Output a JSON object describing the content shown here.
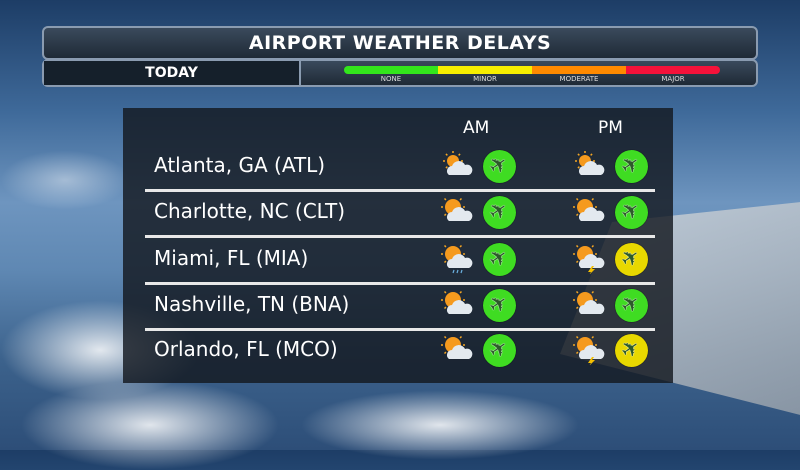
{
  "title": "AIRPORT WEATHER DELAYS",
  "period": "TODAY",
  "legend": [
    {
      "label": "NONE",
      "color": "#33e61c"
    },
    {
      "label": "MINOR",
      "color": "#f7ee00"
    },
    {
      "label": "MODERATE",
      "color": "#ff8a00"
    },
    {
      "label": "MAJOR",
      "color": "#f5123a"
    }
  ],
  "columns": {
    "am": "AM",
    "pm": "PM"
  },
  "airports": [
    {
      "name": "Atlanta, GA (ATL)",
      "am": {
        "weather": "mostly-cloudy",
        "delay": "none"
      },
      "pm": {
        "weather": "mostly-cloudy",
        "delay": "none"
      }
    },
    {
      "name": "Charlotte, NC (CLT)",
      "am": {
        "weather": "partly-sunny",
        "delay": "none"
      },
      "pm": {
        "weather": "partly-sunny",
        "delay": "none"
      }
    },
    {
      "name": "Miami, FL (MIA)",
      "am": {
        "weather": "showers",
        "delay": "none"
      },
      "pm": {
        "weather": "thunderstorms",
        "delay": "minor"
      }
    },
    {
      "name": "Nashville, TN (BNA)",
      "am": {
        "weather": "partly-sunny",
        "delay": "none"
      },
      "pm": {
        "weather": "partly-sunny",
        "delay": "none"
      }
    },
    {
      "name": "Orlando, FL (MCO)",
      "am": {
        "weather": "partly-sunny",
        "delay": "none"
      },
      "pm": {
        "weather": "thunderstorms",
        "delay": "minor"
      }
    }
  ],
  "delay_colors": {
    "none": "#3fdc22",
    "minor": "#e8d800"
  }
}
